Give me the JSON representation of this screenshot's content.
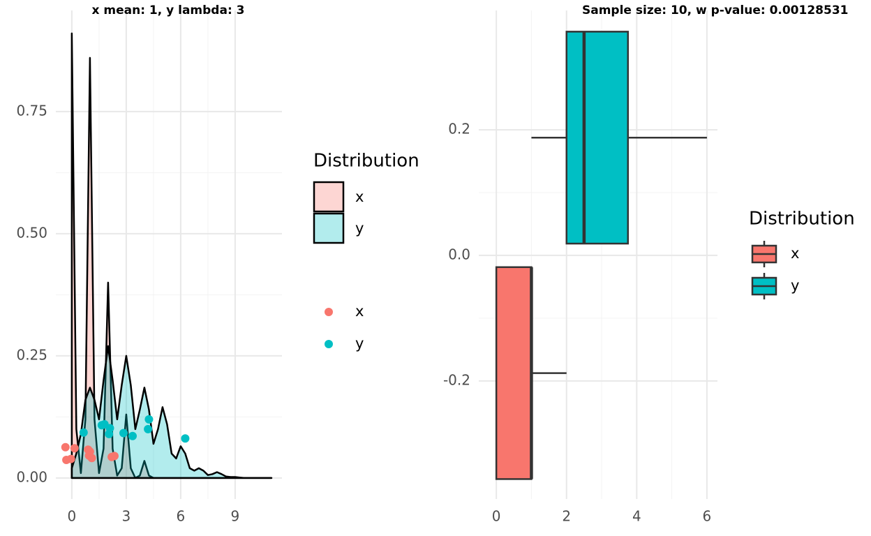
{
  "chart_data": [
    {
      "type": "density",
      "title": "x mean: 1, y lambda: 3",
      "legend_title": "Distribution",
      "x": [
        0,
        0.25,
        0.5,
        0.75,
        1,
        1.25,
        1.5,
        1.75,
        2,
        2.25,
        2.5,
        2.75,
        3,
        3.25,
        3.5,
        3.75,
        4,
        4.25,
        4.5,
        4.75,
        5,
        5.25,
        5.5,
        5.75,
        6,
        6.25,
        6.5,
        6.75,
        7,
        7.25,
        7.5,
        7.75,
        8,
        8.25,
        8.5,
        8.75,
        9,
        9.25,
        9.5,
        9.75,
        10,
        10.25,
        10.5,
        10.75,
        11
      ],
      "series": [
        {
          "name": "x",
          "color": "#F8766D",
          "values": [
            0.91,
            0.1,
            0.01,
            0.12,
            0.86,
            0.12,
            0.01,
            0.06,
            0.4,
            0.06,
            0.005,
            0.02,
            0.13,
            0.02,
            0,
            0.005,
            0.035,
            0.005,
            0,
            0,
            0,
            0,
            0,
            0,
            0,
            0,
            0,
            0,
            0,
            0,
            0,
            0,
            0,
            0,
            0,
            0,
            0,
            0,
            0,
            0,
            0,
            0,
            0,
            0,
            0
          ]
        },
        {
          "name": "y",
          "color": "#00BFC4",
          "values": [
            0.02,
            0.05,
            0.09,
            0.16,
            0.185,
            0.16,
            0.12,
            0.2,
            0.27,
            0.2,
            0.12,
            0.19,
            0.25,
            0.19,
            0.1,
            0.14,
            0.185,
            0.14,
            0.07,
            0.1,
            0.145,
            0.11,
            0.05,
            0.04,
            0.065,
            0.05,
            0.02,
            0.015,
            0.02,
            0.015,
            0.006,
            0.008,
            0.012,
            0.008,
            0.003,
            0.002,
            0.002,
            0.001,
            0,
            0,
            0,
            0,
            0,
            0,
            0
          ]
        }
      ],
      "points": [
        {
          "name": "x",
          "color": "#F8766D",
          "x": [
            -0.35,
            0.15,
            -0.3,
            -0.05,
            0.9,
            1.0,
            0.95,
            1.1,
            2.2,
            2.35
          ],
          "y": [
            0.063,
            0.061,
            0.037,
            0.039,
            0.058,
            0.054,
            0.046,
            0.041,
            0.043,
            0.045
          ]
        },
        {
          "name": "y",
          "color": "#00BFC4",
          "x": [
            0.65,
            1.65,
            1.8,
            2.05,
            2.1,
            2.85,
            3.35,
            4.2,
            4.25,
            6.25
          ],
          "y": [
            0.093,
            0.108,
            0.11,
            0.09,
            0.102,
            0.092,
            0.086,
            0.1,
            0.12,
            0.081
          ]
        }
      ],
      "xlim": [
        -0.88,
        11.58
      ],
      "ylim": [
        -0.043,
        0.957
      ],
      "xticks": [
        0,
        3,
        6,
        9
      ],
      "yticks": [
        {
          "value": 0,
          "label": "0.00"
        },
        {
          "value": 0.25,
          "label": "0.25"
        },
        {
          "value": 0.5,
          "label": "0.50"
        },
        {
          "value": 0.75,
          "label": "0.75"
        }
      ],
      "grid": true
    },
    {
      "type": "boxplot",
      "title": "Sample size: 10, w p-value: 0.00128531",
      "legend_title": "Distribution",
      "series": [
        {
          "name": "x",
          "color": "#F8766D",
          "position": -0.1875,
          "min": 0,
          "q1": 0,
          "median": 1,
          "q3": 1,
          "max": 2
        },
        {
          "name": "y",
          "color": "#00BFC4",
          "position": 0.1875,
          "min": 1,
          "q1": 2,
          "median": 2.5,
          "q3": 3.75,
          "max": 6
        }
      ],
      "xlim": [
        -0.5,
        6.3
      ],
      "ylim": [
        -0.388,
        0.39
      ],
      "xticks": [
        0,
        2,
        4,
        6
      ],
      "yticks": [
        {
          "value": -0.2,
          "label": "-0.2"
        },
        {
          "value": 0,
          "label": "0.0"
        },
        {
          "value": 0.2,
          "label": "0.2"
        }
      ],
      "grid": true
    }
  ]
}
